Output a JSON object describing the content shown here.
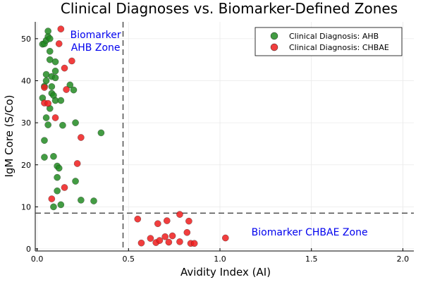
{
  "chart_data": {
    "type": "scatter",
    "title": "Clinical Diagnoses vs. Biomarker-Defined Zones",
    "xlabel": "Avidity Index (AI)",
    "ylabel": "IgM Core (S/Co)",
    "xlim": [
      -0.01,
      2.06
    ],
    "ylim": [
      -0.5,
      54
    ],
    "x_ticks": [
      0.0,
      0.5,
      1.0,
      1.5,
      2.0
    ],
    "x_tick_labels": [
      "0.0",
      "0.5",
      "1.0",
      "1.5",
      "2.0"
    ],
    "y_ticks": [
      0,
      10,
      20,
      30,
      40,
      50
    ],
    "y_tick_labels": [
      "0",
      "10",
      "20",
      "30",
      "40",
      "50"
    ],
    "grid": true,
    "legend_position": "top-right",
    "thresholds": {
      "vertical_x": 0.47,
      "horizontal_y": 8.5
    },
    "zone_labels": [
      {
        "text": "Biomarker",
        "x": 0.32,
        "y": 51.0,
        "color": "#0000ee"
      },
      {
        "text": "AHB Zone",
        "x": 0.32,
        "y": 48.0,
        "color": "#0000ee"
      },
      {
        "text": "Biomarker CHBAE Zone",
        "x": 1.49,
        "y": 4.0,
        "color": "#0000ee"
      }
    ],
    "series": [
      {
        "name": "Clinical Diagnosis: AHB",
        "color": "#228b22",
        "points": [
          [
            0.03,
            48.7
          ],
          [
            0.04,
            48.8
          ],
          [
            0.05,
            49.6
          ],
          [
            0.06,
            50.5
          ],
          [
            0.07,
            50.0
          ],
          [
            0.06,
            51.8
          ],
          [
            0.07,
            47.0
          ],
          [
            0.07,
            45.0
          ],
          [
            0.1,
            44.5
          ],
          [
            0.05,
            41.5
          ],
          [
            0.08,
            41.0
          ],
          [
            0.1,
            40.7
          ],
          [
            0.1,
            42.3
          ],
          [
            0.05,
            40.0
          ],
          [
            0.08,
            38.6
          ],
          [
            0.04,
            38.7
          ],
          [
            0.08,
            37.0
          ],
          [
            0.09,
            36.5
          ],
          [
            0.03,
            35.9
          ],
          [
            0.1,
            35.3
          ],
          [
            0.13,
            35.3
          ],
          [
            0.18,
            39.0
          ],
          [
            0.2,
            37.8
          ],
          [
            0.07,
            33.4
          ],
          [
            0.05,
            31.2
          ],
          [
            0.06,
            29.5
          ],
          [
            0.14,
            29.4
          ],
          [
            0.21,
            30.0
          ],
          [
            0.35,
            27.6
          ],
          [
            0.04,
            25.8
          ],
          [
            0.04,
            21.8
          ],
          [
            0.09,
            22.0
          ],
          [
            0.11,
            19.7
          ],
          [
            0.12,
            19.2
          ],
          [
            0.21,
            16.1
          ],
          [
            0.11,
            17.0
          ],
          [
            0.11,
            13.8
          ],
          [
            0.09,
            10.0
          ],
          [
            0.13,
            10.5
          ],
          [
            0.24,
            11.6
          ],
          [
            0.31,
            11.4
          ]
        ]
      },
      {
        "name": "Clinical Diagnosis: CHBAE",
        "color": "#ee1c1c",
        "points": [
          [
            0.13,
            52.3
          ],
          [
            0.19,
            44.7
          ],
          [
            0.15,
            43.0
          ],
          [
            0.12,
            48.8
          ],
          [
            0.16,
            37.9
          ],
          [
            0.04,
            38.4
          ],
          [
            0.04,
            34.7
          ],
          [
            0.06,
            34.6
          ],
          [
            0.1,
            31.2
          ],
          [
            0.24,
            26.5
          ],
          [
            0.22,
            20.3
          ],
          [
            0.15,
            14.6
          ],
          [
            0.08,
            11.9
          ],
          [
            0.55,
            7.1
          ],
          [
            0.66,
            6.0
          ],
          [
            0.71,
            6.7
          ],
          [
            0.78,
            8.2
          ],
          [
            0.83,
            6.6
          ],
          [
            0.57,
            1.4
          ],
          [
            0.62,
            2.5
          ],
          [
            0.65,
            1.5
          ],
          [
            0.67,
            2.0
          ],
          [
            0.7,
            2.9
          ],
          [
            0.72,
            1.6
          ],
          [
            0.74,
            3.1
          ],
          [
            0.78,
            1.7
          ],
          [
            0.82,
            3.9
          ],
          [
            0.84,
            1.3
          ],
          [
            0.86,
            1.3
          ],
          [
            1.03,
            2.6
          ]
        ]
      }
    ]
  }
}
